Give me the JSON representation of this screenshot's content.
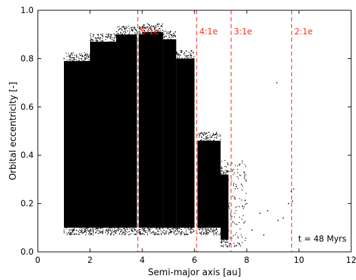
{
  "chart_data": {
    "type": "scatter",
    "xlabel": "Semi-major axis [au]",
    "ylabel": "Orbital eccentricity [-]",
    "xlim": [
      0,
      12
    ],
    "ylim": [
      0.0,
      1.0
    ],
    "xticks": [
      "0",
      "2",
      "4",
      "6",
      "8",
      "10",
      "12"
    ],
    "yticks": [
      "0.0",
      "0.2",
      "0.4",
      "0.6",
      "0.8",
      "1.0"
    ],
    "xtick_values": [
      0,
      2,
      4,
      6,
      8,
      10,
      12
    ],
    "ytick_values": [
      0.0,
      0.2,
      0.4,
      0.6,
      0.8,
      1.0
    ],
    "annotation": "t = 48 Myrs",
    "marker_color": "#000000",
    "resonance_color": "#ff2a1a",
    "resonances": [
      {
        "label": "5:1e",
        "a": 3.83
      },
      {
        "label": "4:1e",
        "a": 6.08
      },
      {
        "label": "3:1e",
        "a": 7.4
      },
      {
        "label": "2:1e",
        "a": 9.72
      }
    ],
    "dense_regions": [
      {
        "a_range": [
          1.0,
          2.0
        ],
        "e_range": [
          0.1,
          0.79
        ]
      },
      {
        "a_range": [
          2.0,
          3.0
        ],
        "e_range": [
          0.1,
          0.87
        ]
      },
      {
        "a_range": [
          3.0,
          4.0
        ],
        "e_range": [
          0.1,
          0.9
        ]
      },
      {
        "a_range": [
          4.0,
          4.8
        ],
        "e_range": [
          0.1,
          0.91
        ]
      },
      {
        "a_range": [
          4.8,
          5.3
        ],
        "e_range": [
          0.1,
          0.88
        ]
      },
      {
        "a_range": [
          5.3,
          6.0
        ],
        "e_range": [
          0.1,
          0.8
        ]
      },
      {
        "a_range": [
          6.1,
          7.0
        ],
        "e_range": [
          0.1,
          0.46
        ]
      },
      {
        "a_range": [
          7.0,
          7.3
        ],
        "e_range": [
          0.05,
          0.32
        ]
      }
    ],
    "sparse_points": [
      {
        "a": 7.6,
        "e": 0.27
      },
      {
        "a": 7.8,
        "e": 0.28
      },
      {
        "a": 8.0,
        "e": 0.2
      },
      {
        "a": 8.5,
        "e": 0.16
      },
      {
        "a": 8.65,
        "e": 0.07
      },
      {
        "a": 8.8,
        "e": 0.17
      },
      {
        "a": 9.15,
        "e": 0.7
      },
      {
        "a": 9.4,
        "e": 0.14
      },
      {
        "a": 9.6,
        "e": 0.2
      },
      {
        "a": 9.7,
        "e": 0.25
      },
      {
        "a": 9.75,
        "e": 0.21
      },
      {
        "a": 9.8,
        "e": 0.26
      },
      {
        "a": 9.2,
        "e": 0.13
      },
      {
        "a": 8.2,
        "e": 0.09
      },
      {
        "a": 7.9,
        "e": 0.12
      }
    ]
  }
}
